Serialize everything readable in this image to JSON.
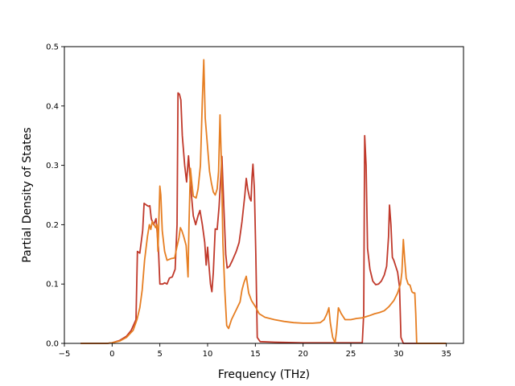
{
  "chart_data": {
    "type": "line",
    "title": "",
    "xlabel": "Frequency (THz)",
    "ylabel": "Partial Density of States",
    "xlim": [
      -5,
      36.8
    ],
    "ylim": [
      0,
      0.5
    ],
    "x_ticks": [
      "−5",
      "0",
      "5",
      "10",
      "15",
      "20",
      "25",
      "30",
      "35"
    ],
    "x_tick_values": [
      -5,
      0,
      5,
      10,
      15,
      20,
      25,
      30,
      35
    ],
    "y_ticks": [
      "0.0",
      "0.1",
      "0.2",
      "0.3",
      "0.4",
      "0.5"
    ],
    "y_tick_values": [
      0,
      0.1,
      0.2,
      0.3,
      0.4,
      0.5
    ],
    "grid": false,
    "legend": "none",
    "series": [
      {
        "color": "#c0392b",
        "points": [
          [
            -3.3,
            0
          ],
          [
            -0.5,
            0
          ],
          [
            0,
            0.001
          ],
          [
            0.8,
            0.005
          ],
          [
            1.5,
            0.012
          ],
          [
            2.0,
            0.022
          ],
          [
            2.5,
            0.04
          ],
          [
            2.65,
            0.155
          ],
          [
            2.9,
            0.152
          ],
          [
            3.2,
            0.19
          ],
          [
            3.35,
            0.236
          ],
          [
            3.6,
            0.233
          ],
          [
            3.8,
            0.231
          ],
          [
            3.95,
            0.232
          ],
          [
            4.1,
            0.21
          ],
          [
            4.35,
            0.2
          ],
          [
            4.6,
            0.21
          ],
          [
            4.85,
            0.16
          ],
          [
            5.0,
            0.1
          ],
          [
            5.3,
            0.1
          ],
          [
            5.5,
            0.102
          ],
          [
            5.75,
            0.1
          ],
          [
            6.0,
            0.11
          ],
          [
            6.3,
            0.112
          ],
          [
            6.6,
            0.125
          ],
          [
            6.8,
            0.2
          ],
          [
            6.9,
            0.422
          ],
          [
            7.05,
            0.42
          ],
          [
            7.2,
            0.41
          ],
          [
            7.35,
            0.35
          ],
          [
            7.6,
            0.3
          ],
          [
            7.8,
            0.272
          ],
          [
            8.0,
            0.316
          ],
          [
            8.25,
            0.26
          ],
          [
            8.5,
            0.215
          ],
          [
            8.75,
            0.2
          ],
          [
            9.0,
            0.215
          ],
          [
            9.2,
            0.224
          ],
          [
            9.45,
            0.2
          ],
          [
            9.7,
            0.17
          ],
          [
            9.85,
            0.132
          ],
          [
            10.0,
            0.162
          ],
          [
            10.15,
            0.13
          ],
          [
            10.3,
            0.1
          ],
          [
            10.45,
            0.087
          ],
          [
            10.6,
            0.12
          ],
          [
            10.8,
            0.193
          ],
          [
            11.0,
            0.192
          ],
          [
            11.2,
            0.23
          ],
          [
            11.5,
            0.315
          ],
          [
            11.7,
            0.23
          ],
          [
            11.9,
            0.15
          ],
          [
            12.05,
            0.127
          ],
          [
            12.3,
            0.13
          ],
          [
            12.6,
            0.14
          ],
          [
            13.0,
            0.155
          ],
          [
            13.3,
            0.17
          ],
          [
            13.6,
            0.205
          ],
          [
            13.9,
            0.25
          ],
          [
            14.05,
            0.278
          ],
          [
            14.2,
            0.26
          ],
          [
            14.4,
            0.245
          ],
          [
            14.55,
            0.24
          ],
          [
            14.65,
            0.28
          ],
          [
            14.75,
            0.302
          ],
          [
            14.9,
            0.26
          ],
          [
            15.05,
            0.15
          ],
          [
            15.2,
            0.01
          ],
          [
            15.5,
            0.003
          ],
          [
            17.0,
            0.002
          ],
          [
            20.0,
            0.001
          ],
          [
            23.0,
            0.001
          ],
          [
            26.2,
            0.001
          ],
          [
            26.35,
            0.05
          ],
          [
            26.45,
            0.35
          ],
          [
            26.6,
            0.3
          ],
          [
            26.75,
            0.16
          ],
          [
            27.0,
            0.125
          ],
          [
            27.3,
            0.105
          ],
          [
            27.6,
            0.099
          ],
          [
            27.9,
            0.1
          ],
          [
            28.2,
            0.105
          ],
          [
            28.5,
            0.115
          ],
          [
            28.75,
            0.13
          ],
          [
            28.95,
            0.18
          ],
          [
            29.05,
            0.233
          ],
          [
            29.2,
            0.2
          ],
          [
            29.35,
            0.145
          ],
          [
            29.5,
            0.14
          ],
          [
            29.7,
            0.13
          ],
          [
            29.9,
            0.12
          ],
          [
            30.1,
            0.095
          ],
          [
            30.25,
            0.01
          ],
          [
            30.5,
            0
          ],
          [
            35.0,
            0
          ]
        ]
      },
      {
        "color": "#e67e22",
        "points": [
          [
            -3.3,
            0
          ],
          [
            -0.5,
            0
          ],
          [
            0,
            0.001
          ],
          [
            0.8,
            0.004
          ],
          [
            1.5,
            0.01
          ],
          [
            2.2,
            0.022
          ],
          [
            2.6,
            0.04
          ],
          [
            2.9,
            0.06
          ],
          [
            3.15,
            0.09
          ],
          [
            3.4,
            0.14
          ],
          [
            3.7,
            0.18
          ],
          [
            3.9,
            0.2
          ],
          [
            4.05,
            0.192
          ],
          [
            4.2,
            0.205
          ],
          [
            4.4,
            0.2
          ],
          [
            4.55,
            0.195
          ],
          [
            4.7,
            0.2
          ],
          [
            4.8,
            0.155
          ],
          [
            5.0,
            0.265
          ],
          [
            5.1,
            0.25
          ],
          [
            5.25,
            0.19
          ],
          [
            5.5,
            0.155
          ],
          [
            5.75,
            0.14
          ],
          [
            6.2,
            0.143
          ],
          [
            6.55,
            0.144
          ],
          [
            6.75,
            0.16
          ],
          [
            7.0,
            0.178
          ],
          [
            7.15,
            0.195
          ],
          [
            7.3,
            0.19
          ],
          [
            7.5,
            0.18
          ],
          [
            7.75,
            0.165
          ],
          [
            7.85,
            0.14
          ],
          [
            7.95,
            0.112
          ],
          [
            8.05,
            0.2
          ],
          [
            8.2,
            0.295
          ],
          [
            8.35,
            0.27
          ],
          [
            8.5,
            0.248
          ],
          [
            8.8,
            0.245
          ],
          [
            9.0,
            0.26
          ],
          [
            9.25,
            0.3
          ],
          [
            9.45,
            0.41
          ],
          [
            9.6,
            0.478
          ],
          [
            9.75,
            0.38
          ],
          [
            10.0,
            0.33
          ],
          [
            10.2,
            0.29
          ],
          [
            10.4,
            0.27
          ],
          [
            10.6,
            0.255
          ],
          [
            10.8,
            0.25
          ],
          [
            11.0,
            0.26
          ],
          [
            11.15,
            0.29
          ],
          [
            11.3,
            0.385
          ],
          [
            11.45,
            0.3
          ],
          [
            11.6,
            0.17
          ],
          [
            11.8,
            0.09
          ],
          [
            12.0,
            0.03
          ],
          [
            12.2,
            0.025
          ],
          [
            12.5,
            0.04
          ],
          [
            12.8,
            0.05
          ],
          [
            13.1,
            0.06
          ],
          [
            13.4,
            0.07
          ],
          [
            13.6,
            0.09
          ],
          [
            13.8,
            0.102
          ],
          [
            14.05,
            0.113
          ],
          [
            14.3,
            0.085
          ],
          [
            14.6,
            0.072
          ],
          [
            15.0,
            0.062
          ],
          [
            15.4,
            0.05
          ],
          [
            16.0,
            0.044
          ],
          [
            17.0,
            0.04
          ],
          [
            18.0,
            0.037
          ],
          [
            19.0,
            0.035
          ],
          [
            20.0,
            0.034
          ],
          [
            21.0,
            0.034
          ],
          [
            21.8,
            0.035
          ],
          [
            22.2,
            0.04
          ],
          [
            22.5,
            0.05
          ],
          [
            22.7,
            0.06
          ],
          [
            22.85,
            0.035
          ],
          [
            23.1,
            0.01
          ],
          [
            23.35,
            0.001
          ],
          [
            23.5,
            0.02
          ],
          [
            23.7,
            0.06
          ],
          [
            24.0,
            0.05
          ],
          [
            24.4,
            0.04
          ],
          [
            25.0,
            0.04
          ],
          [
            25.6,
            0.042
          ],
          [
            26.2,
            0.043
          ],
          [
            26.6,
            0.045
          ],
          [
            27.0,
            0.047
          ],
          [
            27.5,
            0.05
          ],
          [
            28.0,
            0.052
          ],
          [
            28.5,
            0.055
          ],
          [
            29.0,
            0.062
          ],
          [
            29.5,
            0.072
          ],
          [
            29.9,
            0.085
          ],
          [
            30.2,
            0.1
          ],
          [
            30.35,
            0.12
          ],
          [
            30.5,
            0.175
          ],
          [
            30.65,
            0.14
          ],
          [
            30.8,
            0.11
          ],
          [
            31.0,
            0.1
          ],
          [
            31.2,
            0.098
          ],
          [
            31.4,
            0.087
          ],
          [
            31.55,
            0.085
          ],
          [
            31.7,
            0.085
          ],
          [
            31.8,
            0.05
          ],
          [
            31.9,
            0
          ],
          [
            35.0,
            0
          ]
        ]
      }
    ]
  }
}
